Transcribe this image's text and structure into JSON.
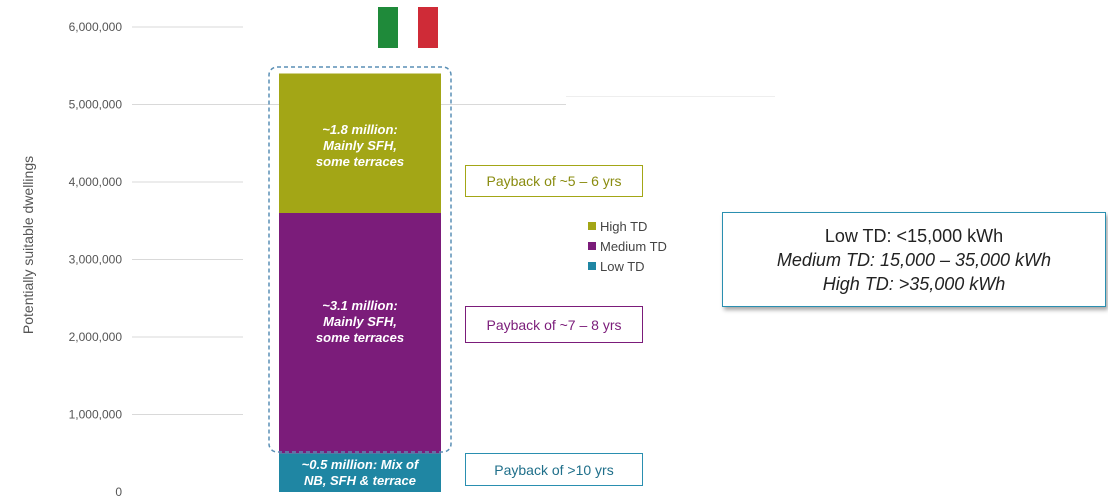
{
  "chart_data": {
    "type": "bar",
    "stacked": true,
    "ylabel": "Potentially suitable dwellings",
    "ylim": [
      0,
      6000000
    ],
    "yticks": [
      "0",
      "1,000,000",
      "2,000,000",
      "3,000,000",
      "4,000,000",
      "5,000,000",
      "6,000,000"
    ],
    "yticks_values": [
      0,
      1000000,
      2000000,
      3000000,
      4000000,
      5000000,
      6000000
    ],
    "grid": true,
    "series": [
      {
        "name": "Low TD",
        "value": 500000,
        "color": "#1f86a3",
        "label_lines": [
          "~0.5 million: Mix of",
          "NB, SFH & terrace"
        ],
        "payback": "Payback of  >10 yrs",
        "payback_color": "#2a8fb0"
      },
      {
        "name": "Medium TD",
        "value": 3100000,
        "color": "#7b1c7a",
        "label_lines": [
          "~3.1 million:",
          "Mainly SFH,",
          "some terraces"
        ],
        "payback": "Payback of ~7 – 8 yrs",
        "payback_color": "#7b1c7a"
      },
      {
        "name": "High TD",
        "value": 1800000,
        "color": "#a3a616",
        "label_lines": [
          "~1.8 million:",
          "Mainly SFH,",
          "some terraces"
        ],
        "payback": "Payback of ~5 – 6 yrs",
        "payback_color": "#a3a616"
      }
    ],
    "legend": {
      "position": "right",
      "items": [
        "High TD",
        "Medium TD",
        "Low TD"
      ]
    }
  },
  "flag": {
    "colors": [
      "#1f8a3a",
      "#ffffff",
      "#cf2b37"
    ]
  },
  "infobox": {
    "line1": "Low TD: <15,000 kWh",
    "line2": "Medium TD: 15,000 – 35,000 kWh",
    "line3": "High TD: >35,000 kWh",
    "border_color": "#2a8fb0"
  }
}
